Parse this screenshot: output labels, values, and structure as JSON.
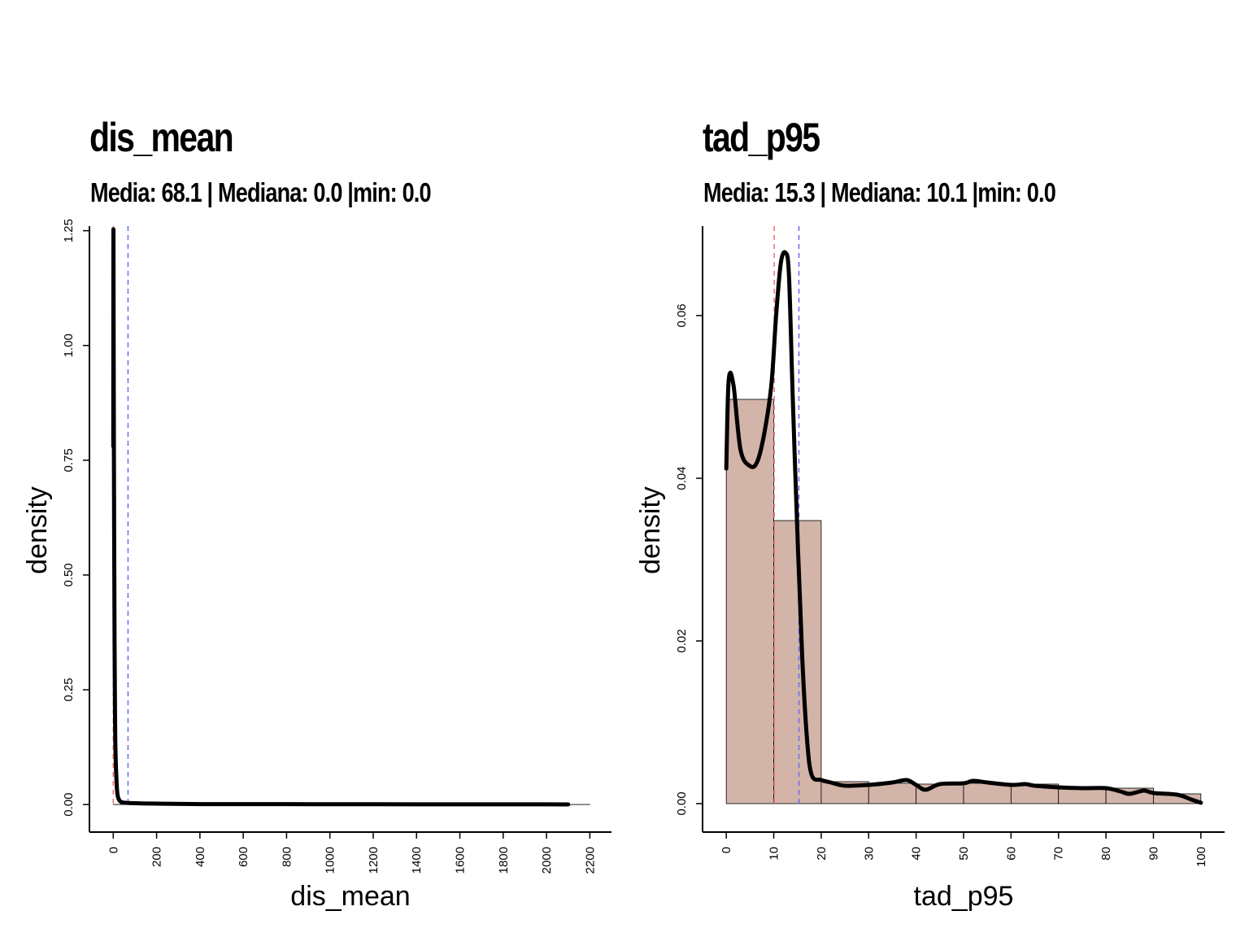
{
  "chart_data": [
    {
      "type": "area",
      "title": "dis_mean",
      "subtitle": "Media: 68.1 | Mediana: 0.0 |min: 0.0",
      "xlabel": "dis_mean",
      "ylabel": "density",
      "xlim": [
        -110,
        2300
      ],
      "ylim": [
        -0.06,
        1.26
      ],
      "x_ticks": [
        0,
        200,
        400,
        600,
        800,
        1000,
        1200,
        1400,
        1600,
        1800,
        2000,
        2200
      ],
      "x_tick_labels": [
        "0",
        "200",
        "400",
        "600",
        "800",
        "1000",
        "1200",
        "1400",
        "1600",
        "1800",
        "2000",
        "2200"
      ],
      "y_ticks": [
        0,
        0.25,
        0.5,
        0.75,
        1.0,
        1.25
      ],
      "y_tick_labels": [
        "0.00",
        "0.25",
        "0.50",
        "0.75",
        "1.00",
        "1.25"
      ],
      "histogram": {
        "bins": [
          0,
          2200
        ],
        "values": [
          0.0001
        ]
      },
      "density": {
        "x": [
          0,
          0.5,
          1,
          2,
          4,
          6,
          8,
          10,
          15,
          20,
          30,
          50,
          100,
          200,
          400,
          800,
          1200,
          1600,
          2000,
          2100
        ],
        "y": [
          0.78,
          1.2,
          1.22,
          0.95,
          0.6,
          0.35,
          0.2,
          0.12,
          0.05,
          0.02,
          0.008,
          0.004,
          0.003,
          0.002,
          0.001,
          0.0008,
          0.0006,
          0.0005,
          0.0004,
          0.0003
        ]
      },
      "median": 0.0,
      "mean": 68.1,
      "median_color": "#f07070",
      "mean_color": "#6a6af0",
      "bar_color": "#d3b4a8",
      "line_color": "#000000",
      "grid": false
    },
    {
      "type": "area",
      "title": "tad_p95",
      "subtitle": "Media: 15.3 | Mediana: 10.1 |min: 0.0",
      "xlabel": "tad_p95",
      "ylabel": "density",
      "xlim": [
        -5,
        105
      ],
      "ylim": [
        -0.0035,
        0.071
      ],
      "x_ticks": [
        0,
        10,
        20,
        30,
        40,
        50,
        60,
        70,
        80,
        90,
        100
      ],
      "x_tick_labels": [
        "0",
        "10",
        "20",
        "30",
        "40",
        "50",
        "60",
        "70",
        "80",
        "90",
        "100"
      ],
      "y_ticks": [
        0,
        0.02,
        0.04,
        0.06
      ],
      "y_tick_labels": [
        "0.00",
        "0.02",
        "0.04",
        "0.06"
      ],
      "histogram": {
        "bins": [
          0,
          10,
          20,
          30,
          40,
          50,
          60,
          70,
          80,
          90,
          100
        ],
        "values": [
          0.0497,
          0.0348,
          0.0027,
          0.0025,
          0.0024,
          0.0025,
          0.0024,
          0.0021,
          0.0019,
          0.0012
        ]
      },
      "density": {
        "x": [
          0,
          0.5,
          1.5,
          3,
          5,
          6.5,
          8,
          9.5,
          10.5,
          11.5,
          12.5,
          13.2,
          14,
          15,
          16,
          17,
          18,
          20,
          22,
          25,
          30,
          35,
          38,
          40,
          42,
          45,
          50,
          52,
          55,
          60,
          63,
          65,
          70,
          75,
          80,
          83,
          85,
          88,
          90,
          95,
          98,
          100
        ],
        "y": [
          0.0412,
          0.052,
          0.0515,
          0.0435,
          0.0415,
          0.042,
          0.0455,
          0.0515,
          0.06,
          0.0665,
          0.0677,
          0.065,
          0.05,
          0.033,
          0.018,
          0.008,
          0.0035,
          0.0029,
          0.0026,
          0.0022,
          0.0023,
          0.0026,
          0.0029,
          0.0023,
          0.0017,
          0.0024,
          0.0025,
          0.0028,
          0.0026,
          0.0023,
          0.0024,
          0.0022,
          0.002,
          0.0019,
          0.0019,
          0.0015,
          0.0012,
          0.0016,
          0.0013,
          0.0011,
          0.0005,
          0.0001
        ]
      },
      "median": 10.1,
      "mean": 15.3,
      "median_color": "#f07070",
      "mean_color": "#6a6af0",
      "bar_color": "#d3b4a8",
      "line_color": "#000000",
      "grid": false
    }
  ]
}
